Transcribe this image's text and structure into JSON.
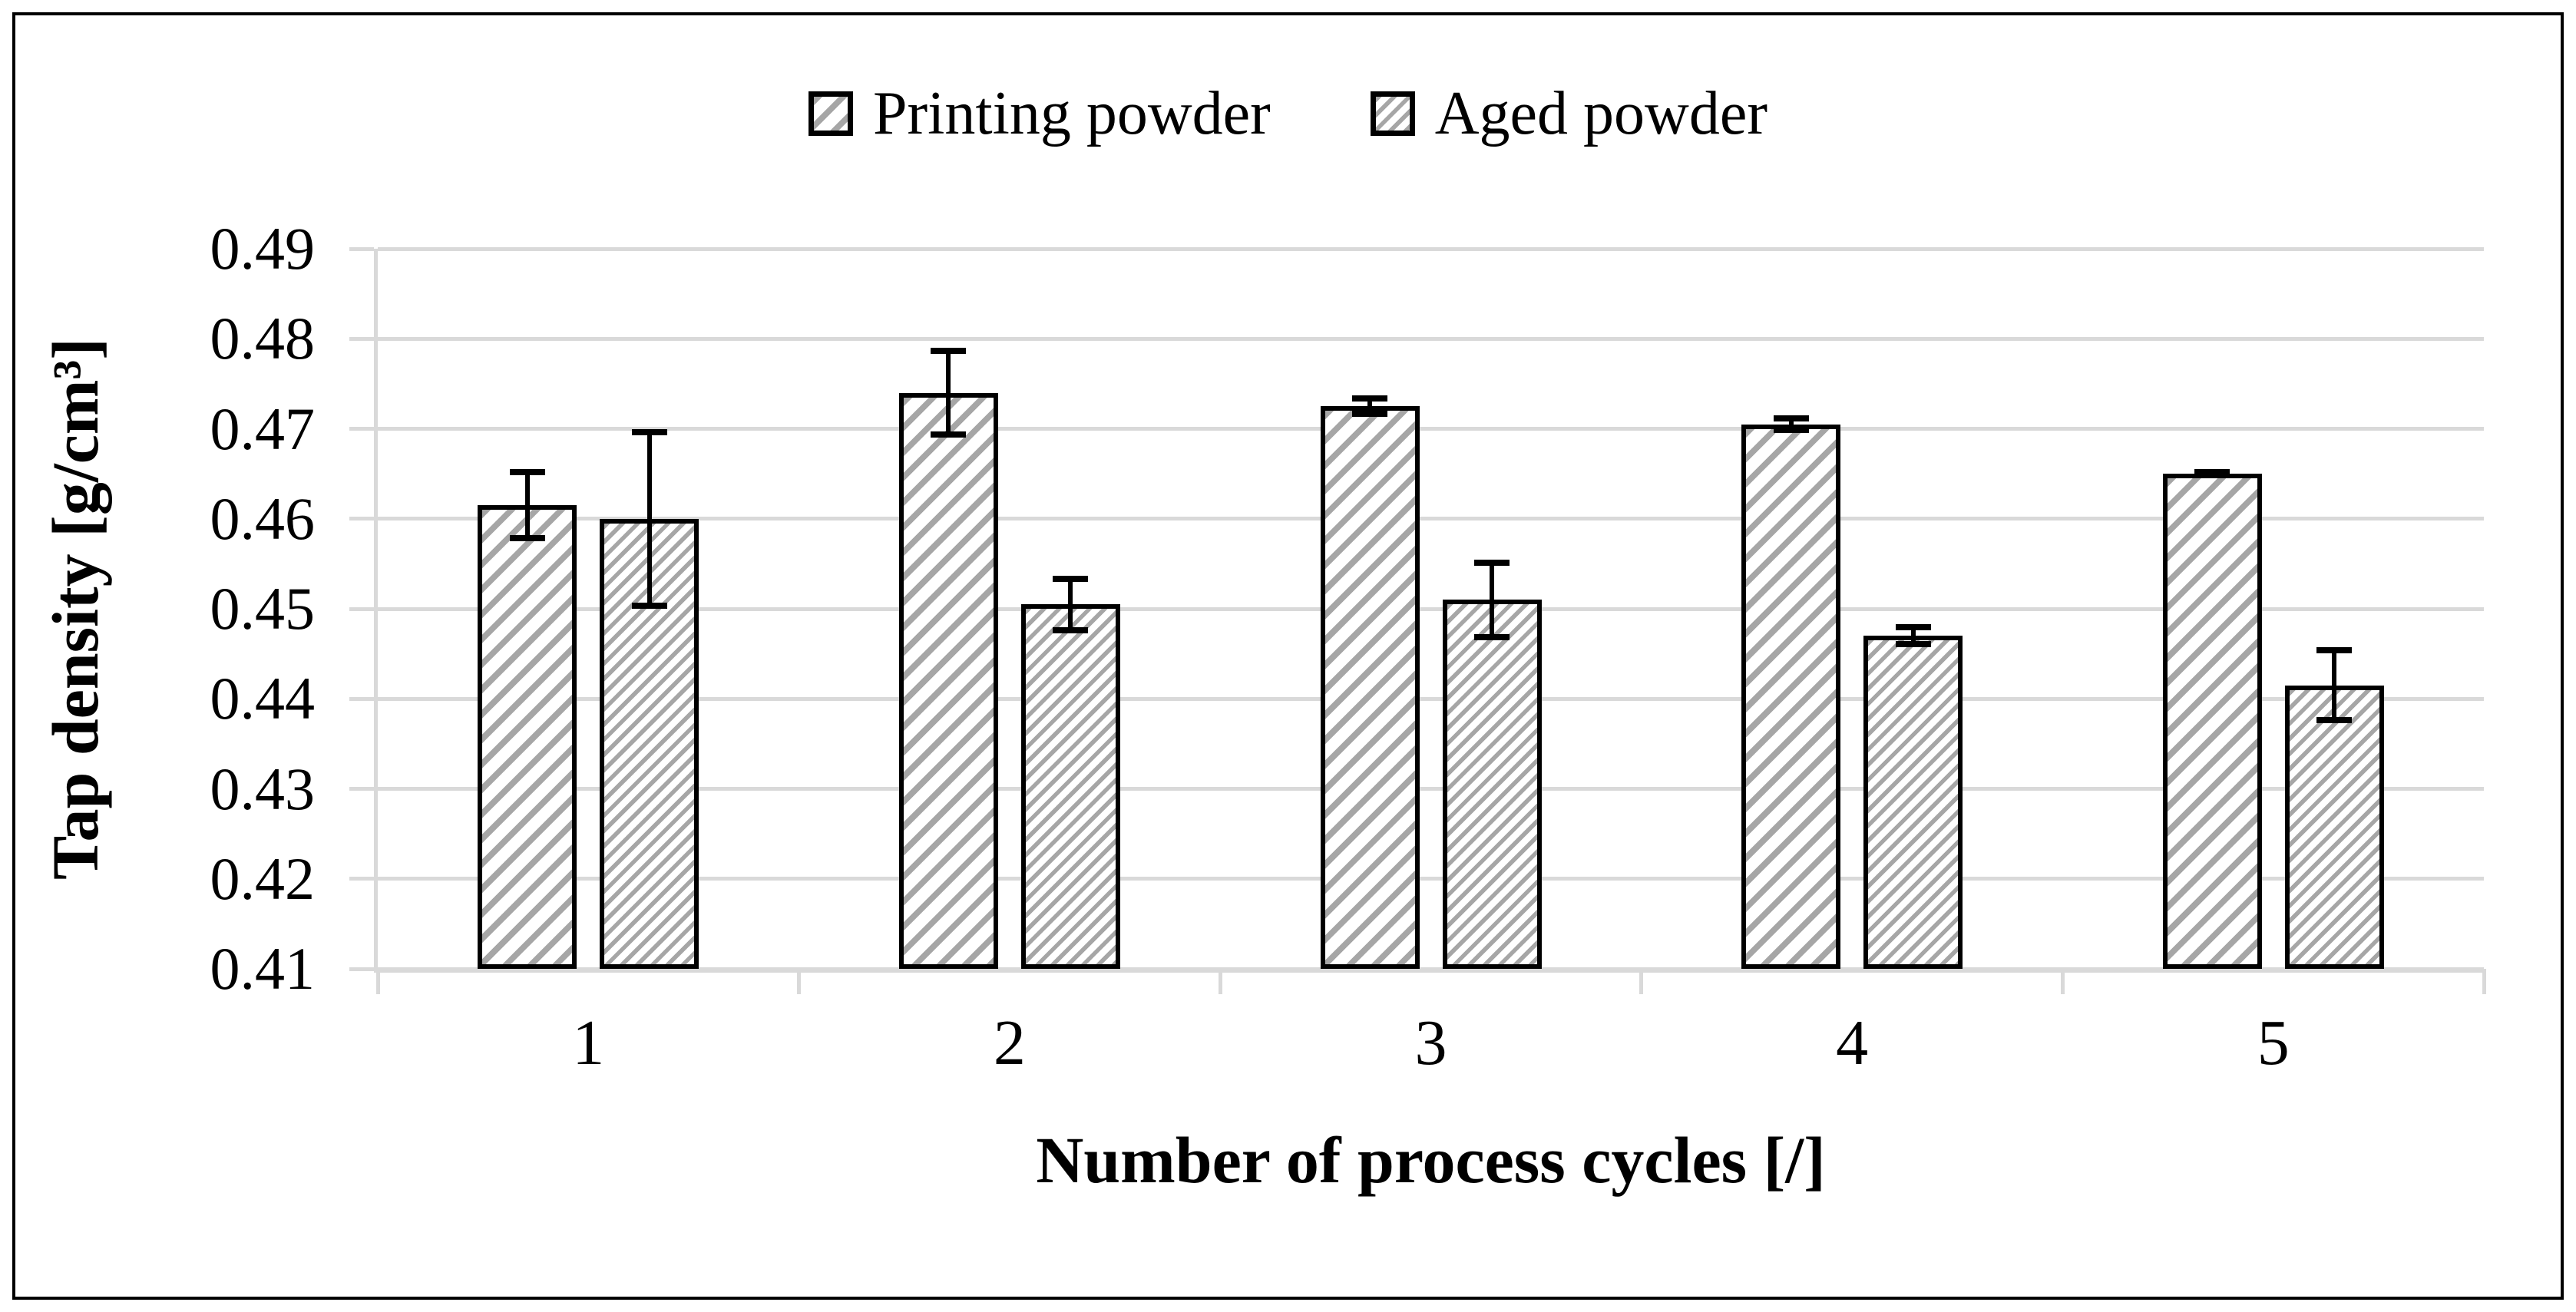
{
  "figure": {
    "description": "Bar chart of tap density versus number of process cycles for printing powder and aged powder, with error bars"
  },
  "chart_data": {
    "type": "bar",
    "title": "",
    "categories": [
      "1",
      "2",
      "3",
      "4",
      "5"
    ],
    "series": [
      {
        "name": "Printing powder",
        "hatch": "wide",
        "values": [
          0.4615,
          0.474,
          0.4725,
          0.4705,
          0.465
        ],
        "errors": [
          0.004,
          0.005,
          0.0012,
          0.001,
          0.0005
        ]
      },
      {
        "name": "Aged powder",
        "hatch": "dense",
        "values": [
          0.46,
          0.4505,
          0.451,
          0.447,
          0.4415
        ],
        "errors": [
          0.01,
          0.0032,
          0.0045,
          0.0013,
          0.0042
        ]
      }
    ],
    "xlabel": "Number of process cycles [/]",
    "ylabel": "Tap density [g/cm³]",
    "ylim": [
      0.41,
      0.49
    ],
    "ytick_step": 0.01,
    "ytick_labels": [
      "0.41",
      "0.42",
      "0.43",
      "0.44",
      "0.45",
      "0.46",
      "0.47",
      "0.48",
      "0.49"
    ],
    "grid": true,
    "legend_position": "top-center",
    "error_bars": true
  },
  "colors": {
    "hatch_gray": "#a6a6a6",
    "grid_gray": "#d9d9d9",
    "text_black": "#000000",
    "frame_black": "#000000",
    "background": "#ffffff"
  }
}
